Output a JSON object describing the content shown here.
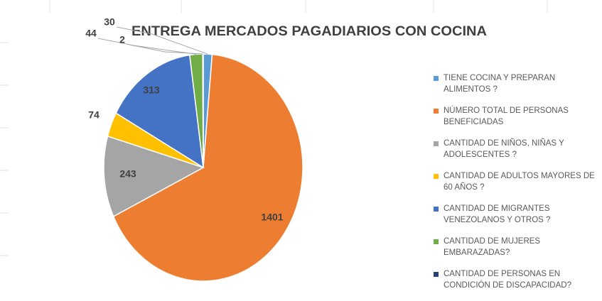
{
  "chart_data": {
    "type": "pie",
    "title": "ENTREGA MERCADOS  PAGADIARIOS CON COCINA",
    "categories": [
      "TIENE COCINA Y PREPARAN ALIMENTOS ?",
      "NÚMERO TOTAL DE PERSONAS BENEFICIADAS",
      "CANTIDAD DE NIÑOS, NIÑAS Y ADOLESCENTES ?",
      "CANTIDAD DE ADULTOS MAYORES DE 60 AÑOS ?",
      "CANTIDAD DE MIGRANTES VENEZOLANOS Y OTROS ?",
      "CANTIDAD DE  MUJERES EMBARAZADAS?",
      "CANTIDAD DE PERSONAS EN CONDICIÓN DE DISCAPACIDAD?"
    ],
    "values": [
      30,
      1401,
      243,
      74,
      313,
      44,
      2
    ],
    "colors": [
      "#5b9bd5",
      "#ed7d31",
      "#a5a5a5",
      "#ffc000",
      "#4472c4",
      "#70ad47",
      "#264478"
    ],
    "legend": "right"
  }
}
